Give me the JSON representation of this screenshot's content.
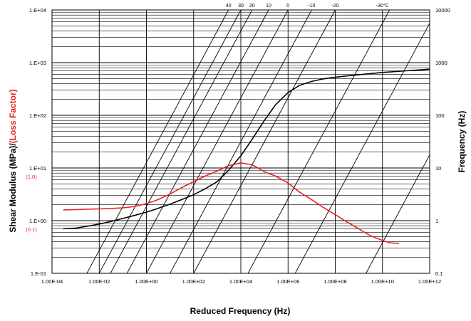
{
  "chart_data": {
    "type": "line",
    "x_scale": "log",
    "y_scale": "log",
    "xlim": [
      0.0001,
      1000000000000
    ],
    "ylim": [
      0.1,
      10000
    ],
    "y2lim": [
      0.1,
      10000
    ],
    "grid": "log-major-and-minor",
    "legend": "none",
    "xlabel": "Reduced Frequency (Hz)",
    "ylabel_part1": "Shear Modulus (MPa)/",
    "ylabel_part2": "(Loss Factor)",
    "y2label": "Frequency (Hz)",
    "x_ticks": [
      {
        "value": 0.0001,
        "label": "1.00E-04"
      },
      {
        "value": 0.01,
        "label": "1.00E-02"
      },
      {
        "value": 1,
        "label": "1.00E+00"
      },
      {
        "value": 100,
        "label": "1.00E+02"
      },
      {
        "value": 10000,
        "label": "1.00E+04"
      },
      {
        "value": 1000000,
        "label": "1.00E+06"
      },
      {
        "value": 100000000,
        "label": "1.00E+08"
      },
      {
        "value": 10000000000,
        "label": "1.00E+10"
      },
      {
        "value": 1000000000000,
        "label": "1.00E+12"
      }
    ],
    "y_ticks": [
      {
        "value": 0.1,
        "label": "1.E-01"
      },
      {
        "value": 1,
        "label": "1.E+00"
      },
      {
        "value": 10,
        "label": "1.E+01"
      },
      {
        "value": 100,
        "label": "1.E+02"
      },
      {
        "value": 1000,
        "label": "1.E+03"
      },
      {
        "value": 10000,
        "label": "1.E+04"
      }
    ],
    "y_secondary_labels": [
      {
        "value": 10,
        "label": "(1.0)"
      },
      {
        "value": 1,
        "label": "(0.1)"
      }
    ],
    "y2_ticks": [
      {
        "value": 0.1,
        "label": "0.1"
      },
      {
        "value": 1,
        "label": "1"
      },
      {
        "value": 10,
        "label": "10"
      },
      {
        "value": 100,
        "label": "100"
      },
      {
        "value": 1000,
        "label": "1000"
      },
      {
        "value": 10000,
        "label": "10000"
      }
    ],
    "isotherms": [
      {
        "label": "40",
        "top_x": 3000,
        "bottom_x": 0.003
      },
      {
        "label": "30",
        "top_x": 10000,
        "bottom_x": 0.01
      },
      {
        "label": "20",
        "top_x": 30000,
        "bottom_x": 0.03
      },
      {
        "label": "10",
        "top_x": 150000,
        "bottom_x": 0.15
      },
      {
        "label": "0",
        "top_x": 1000000,
        "bottom_x": 1
      },
      {
        "label": "-10",
        "top_x": 10000000,
        "bottom_x": 10
      },
      {
        "label": "-20",
        "top_x": 100000000,
        "bottom_x": 100
      },
      {
        "label": "-30°C",
        "top_x": 10000000000,
        "bottom_x": 20000
      },
      {
        "label": "",
        "top_x": null,
        "bottom_x": 2000000
      },
      {
        "label": "",
        "top_x": null,
        "bottom_x": 2000000000
      }
    ],
    "series": [
      {
        "role": "shear-modulus",
        "color": "#000000",
        "x": [
          0.0003,
          0.001,
          0.003,
          0.01,
          0.03,
          0.1,
          0.3,
          1,
          3,
          10,
          30,
          100,
          300,
          1000,
          3000,
          10000,
          30000,
          100000,
          300000,
          1000000,
          3000000,
          10000000,
          30000000,
          100000000,
          1000000000,
          10000000000,
          100000000000,
          1000000000000
        ],
        "y": [
          0.7,
          0.72,
          0.78,
          0.86,
          0.96,
          1.1,
          1.25,
          1.45,
          1.7,
          2.05,
          2.5,
          3.1,
          4.0,
          5.5,
          9.0,
          17,
          35,
          80,
          160,
          270,
          370,
          440,
          490,
          530,
          590,
          650,
          700,
          750
        ]
      },
      {
        "role": "loss-factor",
        "color": "#e8231f",
        "x": [
          0.0003,
          0.001,
          0.003,
          0.01,
          0.03,
          0.1,
          0.3,
          1,
          3,
          10,
          30,
          100,
          300,
          1000,
          3000,
          10000,
          30000,
          100000,
          300000,
          1000000,
          3000000,
          10000000,
          30000000,
          100000000,
          300000000,
          1000000000,
          3000000000,
          10000000000,
          20000000000,
          50000000000
        ],
        "y": [
          1.6,
          1.62,
          1.65,
          1.67,
          1.7,
          1.75,
          1.85,
          2.1,
          2.5,
          3.2,
          4.2,
          5.5,
          7.0,
          8.8,
          11,
          12.5,
          11.5,
          8.5,
          7.0,
          5.2,
          3.5,
          2.5,
          1.8,
          1.3,
          0.95,
          0.7,
          0.52,
          0.42,
          0.38,
          0.37
        ]
      }
    ]
  }
}
